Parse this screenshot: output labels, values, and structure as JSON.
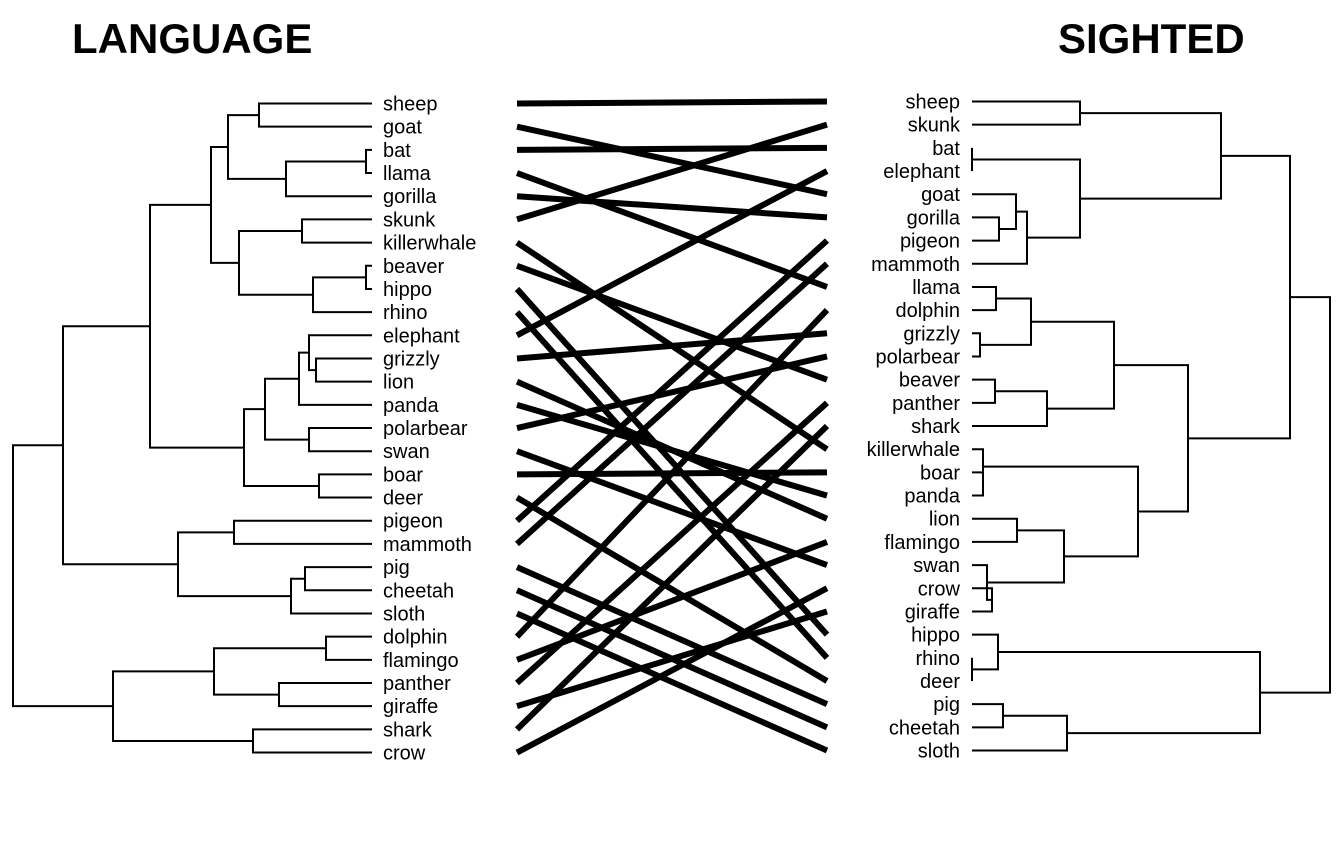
{
  "titles": {
    "left": "LANGUAGE",
    "right": "SIGHTED"
  },
  "left_labels": [
    "sheep",
    "goat",
    "bat",
    "llama",
    "gorilla",
    "skunk",
    "killerwhale",
    "beaver",
    "hippo",
    "rhino",
    "elephant",
    "grizzly",
    "lion",
    "panda",
    "polarbear",
    "swan",
    "boar",
    "deer",
    "pigeon",
    "mammoth",
    "pig",
    "cheetah",
    "sloth",
    "dolphin",
    "flamingo",
    "panther",
    "giraffe",
    "shark",
    "crow"
  ],
  "right_labels": [
    "sheep",
    "skunk",
    "bat",
    "elephant",
    "goat",
    "gorilla",
    "pigeon",
    "mammoth",
    "llama",
    "dolphin",
    "grizzly",
    "polarbear",
    "beaver",
    "panther",
    "shark",
    "killerwhale",
    "boar",
    "panda",
    "lion",
    "flamingo",
    "swan",
    "crow",
    "giraffe",
    "hippo",
    "rhino",
    "deer",
    "pig",
    "cheetah",
    "sloth"
  ]
}
